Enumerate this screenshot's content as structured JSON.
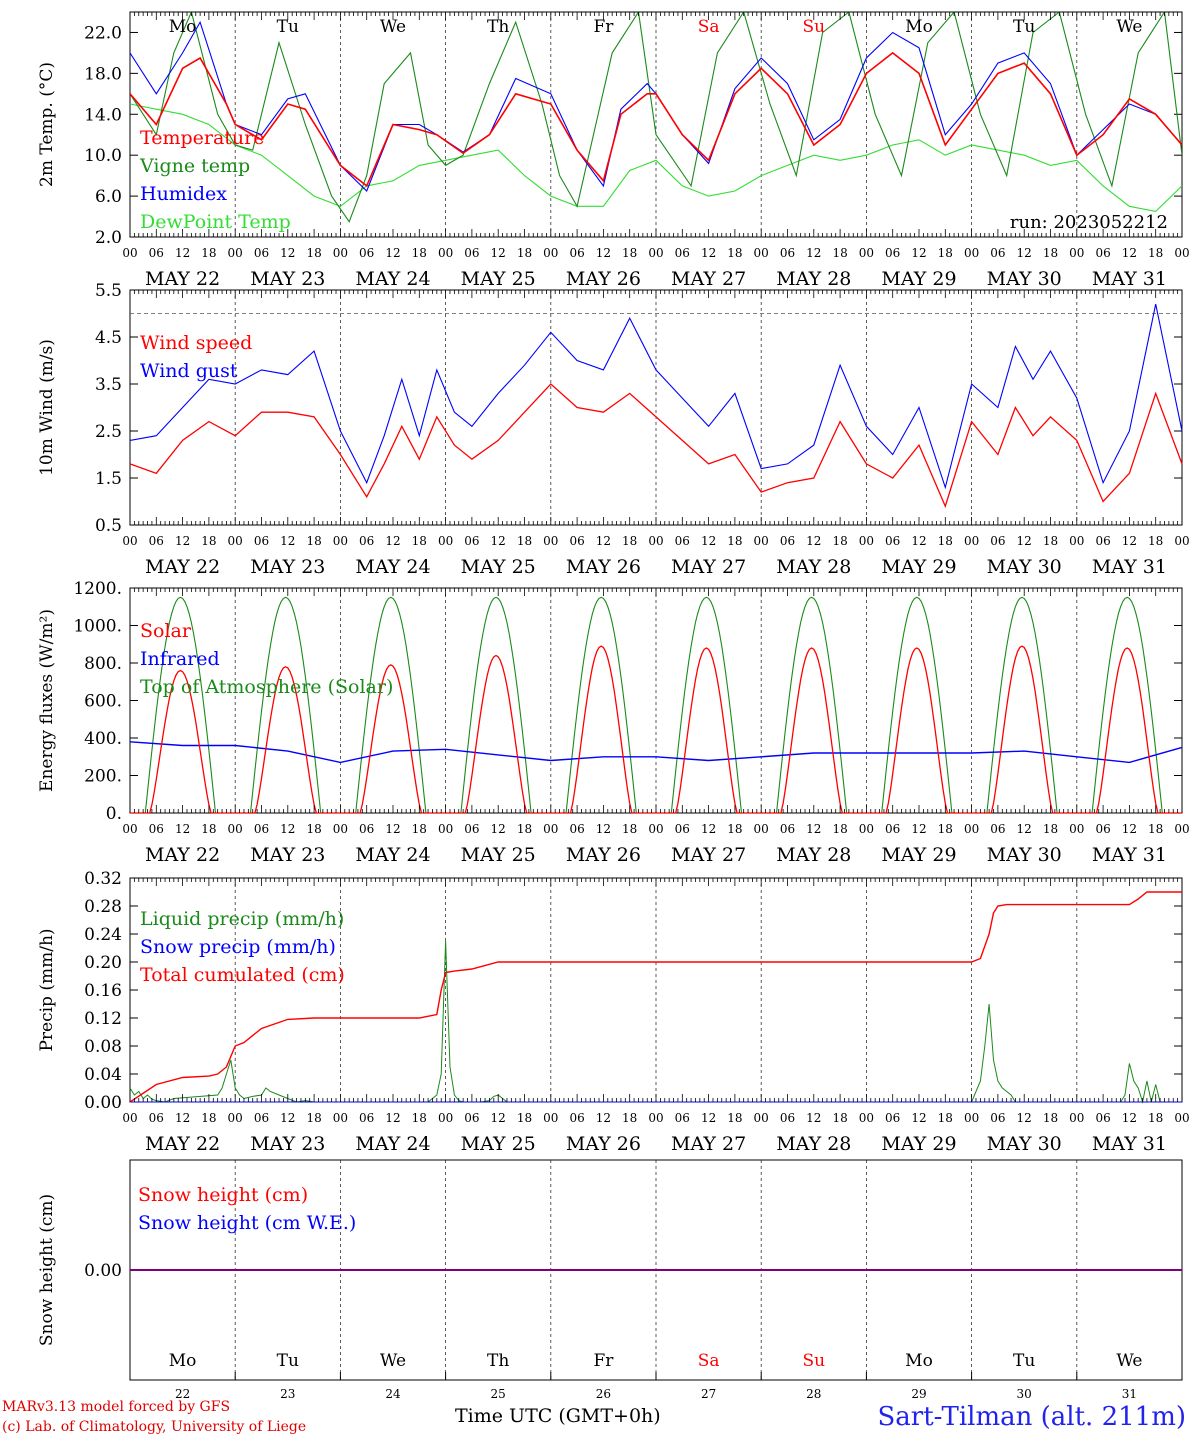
{
  "colors": {
    "red": "#ff0000",
    "green": "#1a8a1a",
    "blue": "#0000ff",
    "lightgreen": "#33dd33",
    "purple": "#7f007f",
    "weekend": "#ff0000",
    "footer_blue": "#2222ee"
  },
  "footer": {
    "model_line": "MARv3.13 model forced by GFS",
    "copyright_line": "(c) Lab. of Climatology, University of Liege",
    "time_label": "Time UTC (GMT+0h)",
    "station": "Sart-Tilman (alt. 211m)"
  },
  "chart_data": [
    {
      "type": "line",
      "ylabel": "2m Temp. (°C)",
      "ylim": [
        2,
        24
      ],
      "yticks": [
        "2.0",
        "6.0",
        "10.0",
        "14.0",
        "18.0",
        "22.0"
      ],
      "run_label": "run: 2023052212",
      "days": [
        "Mo",
        "Tu",
        "We",
        "Th",
        "Fr",
        "Sa",
        "Su",
        "Mo",
        "Tu",
        "We"
      ],
      "dates": [
        "MAY 22",
        "MAY 23",
        "MAY 24",
        "MAY 25",
        "MAY 26",
        "MAY 27",
        "MAY 28",
        "MAY 29",
        "MAY 30",
        "MAY 31"
      ],
      "hour_ticks": [
        "00",
        "06",
        "12",
        "18"
      ],
      "x_unit": "hours since MAY 22 00 UTC",
      "series": [
        {
          "name": "Temperature",
          "color": "#ff0000",
          "x": [
            0,
            6,
            12,
            16,
            22,
            24,
            30,
            36,
            40,
            48,
            54,
            60,
            66,
            70,
            76,
            82,
            88,
            96,
            102,
            108,
            112,
            118,
            120,
            126,
            132,
            138,
            144,
            150,
            156,
            162,
            168,
            174,
            180,
            186,
            192,
            198,
            204,
            210,
            216,
            222,
            228,
            234,
            240
          ],
          "y": [
            16,
            13,
            18.5,
            19.5,
            15,
            13,
            11.5,
            15,
            14.5,
            9,
            7,
            13,
            12.5,
            12,
            10.2,
            12,
            16,
            15,
            10.5,
            7.5,
            14,
            16,
            16,
            12,
            9.5,
            16,
            18.5,
            16,
            11,
            13,
            18,
            20,
            18,
            11,
            14.5,
            18,
            19,
            16,
            10,
            12,
            15.5,
            14,
            11
          ]
        },
        {
          "name": "Vigne temp",
          "color": "#1a8a1a",
          "x": [
            0,
            6,
            10,
            14,
            20,
            24,
            28,
            34,
            40,
            46,
            50,
            54,
            58,
            64,
            68,
            72,
            76,
            82,
            88,
            94,
            98,
            102,
            110,
            116,
            120,
            128,
            134,
            140,
            146,
            152,
            158,
            164,
            170,
            176,
            182,
            188,
            194,
            200,
            206,
            212,
            218,
            224,
            230,
            236,
            240
          ],
          "y": [
            16,
            12,
            20,
            24,
            14,
            11,
            10.5,
            21,
            13,
            6,
            3.5,
            8,
            17,
            20,
            11,
            9,
            10,
            17,
            23,
            15,
            8,
            5,
            20,
            24,
            12,
            7,
            20,
            24,
            15,
            8,
            22,
            24,
            14,
            8,
            21,
            24,
            14,
            8,
            22,
            24,
            14,
            7,
            20,
            24,
            10
          ]
        },
        {
          "name": "Humidex",
          "color": "#0000ff",
          "x": [
            0,
            6,
            12,
            16,
            22,
            24,
            30,
            36,
            40,
            48,
            54,
            60,
            66,
            70,
            76,
            82,
            88,
            96,
            102,
            108,
            112,
            118,
            120,
            126,
            132,
            138,
            144,
            150,
            156,
            162,
            168,
            174,
            180,
            186,
            192,
            198,
            204,
            210,
            216,
            222,
            228,
            234,
            240
          ],
          "y": [
            20,
            16,
            20,
            23,
            15,
            13,
            12,
            15.5,
            16,
            9,
            6.5,
            13,
            13,
            12,
            10.3,
            12,
            17.5,
            16,
            10.5,
            7,
            14.5,
            17,
            16,
            12,
            9.2,
            16.5,
            19.5,
            17,
            11.5,
            13.5,
            19.5,
            22,
            20.5,
            12,
            15,
            19,
            20,
            17,
            10,
            12.5,
            15,
            14,
            11
          ]
        },
        {
          "name": "DewPoint Temp",
          "color": "#33dd33",
          "x": [
            0,
            6,
            12,
            18,
            24,
            30,
            36,
            42,
            48,
            54,
            60,
            66,
            72,
            78,
            84,
            90,
            96,
            102,
            108,
            114,
            120,
            126,
            132,
            138,
            144,
            150,
            156,
            162,
            168,
            174,
            180,
            186,
            192,
            198,
            204,
            210,
            216,
            222,
            228,
            234,
            240
          ],
          "y": [
            15,
            14.5,
            14,
            13,
            11,
            10,
            8,
            6,
            5,
            7,
            7.5,
            9,
            9.5,
            10,
            10.5,
            8,
            6,
            5,
            5,
            8.5,
            9.5,
            7,
            6,
            6.5,
            8,
            9,
            10,
            9.5,
            10,
            11,
            11.5,
            10,
            11,
            10.5,
            10,
            9,
            9.5,
            7,
            5,
            4.5,
            7
          ]
        }
      ]
    },
    {
      "type": "line",
      "ylabel": "10m Wind (m/s)",
      "ylim": [
        0.5,
        5.5
      ],
      "yticks": [
        "0.5",
        "1.5",
        "2.5",
        "3.5",
        "4.5",
        "5.5"
      ],
      "dashed_ref": 5,
      "dates": [
        "MAY 22",
        "MAY 23",
        "MAY 24",
        "MAY 25",
        "MAY 26",
        "MAY 27",
        "MAY 28",
        "MAY 29",
        "MAY 30",
        "MAY 31"
      ],
      "hour_ticks": [
        "00",
        "06",
        "12",
        "18"
      ],
      "series": [
        {
          "name": "Wind speed",
          "color": "#ff0000",
          "x": [
            0,
            6,
            12,
            18,
            24,
            30,
            36,
            42,
            48,
            54,
            58,
            62,
            66,
            70,
            74,
            78,
            84,
            90,
            96,
            102,
            108,
            114,
            120,
            126,
            132,
            138,
            144,
            150,
            156,
            162,
            168,
            174,
            180,
            186,
            192,
            198,
            202,
            206,
            210,
            216,
            222,
            228,
            234,
            240
          ],
          "y": [
            1.8,
            1.6,
            2.3,
            2.7,
            2.4,
            2.9,
            2.9,
            2.8,
            2,
            1.1,
            1.8,
            2.6,
            1.9,
            2.8,
            2.2,
            1.9,
            2.3,
            2.9,
            3.5,
            3,
            2.9,
            3.3,
            2.8,
            2.3,
            1.8,
            2,
            1.2,
            1.4,
            1.5,
            2.7,
            1.8,
            1.5,
            2.2,
            0.9,
            2.7,
            2,
            3,
            2.4,
            2.8,
            2.3,
            1,
            1.6,
            3.3,
            1.8
          ]
        },
        {
          "name": "Wind gust",
          "color": "#0000ff",
          "x": [
            0,
            6,
            12,
            18,
            24,
            30,
            36,
            42,
            48,
            54,
            58,
            62,
            66,
            70,
            74,
            78,
            84,
            90,
            96,
            102,
            108,
            114,
            120,
            126,
            132,
            138,
            144,
            150,
            156,
            162,
            168,
            174,
            180,
            186,
            192,
            198,
            202,
            206,
            210,
            216,
            222,
            228,
            234,
            240
          ],
          "y": [
            2.3,
            2.4,
            3,
            3.6,
            3.5,
            3.8,
            3.7,
            4.2,
            2.5,
            1.4,
            2.4,
            3.6,
            2.4,
            3.8,
            2.9,
            2.6,
            3.3,
            3.9,
            4.6,
            4,
            3.8,
            4.9,
            3.8,
            3.2,
            2.6,
            3.3,
            1.7,
            1.8,
            2.2,
            3.9,
            2.6,
            2,
            3,
            1.3,
            3.5,
            3,
            4.3,
            3.6,
            4.2,
            3.2,
            1.4,
            2.5,
            5.2,
            2.5
          ]
        }
      ]
    },
    {
      "type": "line",
      "ylabel": "Energy fluxes (W/m²)",
      "ylim": [
        0,
        1200
      ],
      "yticks": [
        "0.",
        "200.",
        "400.",
        "600.",
        "800.",
        "1000.",
        "1200."
      ],
      "dates": [
        "MAY 22",
        "MAY 23",
        "MAY 24",
        "MAY 25",
        "MAY 26",
        "MAY 27",
        "MAY 28",
        "MAY 29",
        "MAY 30",
        "MAY 31"
      ],
      "hour_ticks": [
        "00",
        "06",
        "12",
        "18"
      ],
      "solar_daily_peaks": [
        760,
        780,
        790,
        840,
        890,
        880,
        880,
        880,
        890,
        880
      ],
      "toa_daily_peak": 1150,
      "series": [
        {
          "name": "Solar",
          "color": "#ff0000"
        },
        {
          "name": "Infrared",
          "color": "#0000ff",
          "x": [
            0,
            12,
            24,
            36,
            48,
            60,
            72,
            84,
            96,
            108,
            120,
            132,
            144,
            156,
            168,
            180,
            192,
            204,
            216,
            228,
            240
          ],
          "y": [
            380,
            360,
            360,
            330,
            270,
            330,
            340,
            310,
            280,
            300,
            300,
            280,
            300,
            320,
            320,
            320,
            320,
            330,
            300,
            270,
            350
          ]
        },
        {
          "name": "Top of Atmosphere (Solar)",
          "color": "#1a8a1a"
        }
      ]
    },
    {
      "type": "line",
      "ylabel": "Precip (mm/h)",
      "ylim": [
        0,
        0.32
      ],
      "yticks": [
        "0.00",
        "0.04",
        "0.08",
        "0.12",
        "0.16",
        "0.20",
        "0.24",
        "0.28",
        "0.32"
      ],
      "dates": [
        "MAY 22",
        "MAY 23",
        "MAY 24",
        "MAY 25",
        "MAY 26",
        "MAY 27",
        "MAY 28",
        "MAY 29",
        "MAY 30",
        "MAY 31"
      ],
      "hour_ticks": [
        "00",
        "06",
        "12",
        "18"
      ],
      "series": [
        {
          "name": "Liquid precip (mm/h)",
          "color": "#1a8a1a",
          "x": [
            0,
            1,
            2,
            3,
            4,
            5,
            6,
            8,
            10,
            20,
            21,
            22,
            23,
            24,
            25,
            26,
            28,
            30,
            31,
            32,
            34,
            36,
            38,
            40,
            42,
            44,
            46,
            48,
            50,
            52,
            54,
            56,
            58,
            60,
            62,
            64,
            66,
            68,
            70,
            71,
            72,
            73,
            74,
            75,
            76,
            78,
            80,
            82,
            83,
            84,
            85,
            86,
            88,
            90,
            92,
            94,
            96,
            100,
            120,
            140,
            160,
            180,
            192,
            194,
            195,
            196,
            197,
            198,
            199,
            200,
            201,
            202,
            204,
            206,
            208,
            210,
            212,
            214,
            216,
            218,
            220,
            222,
            224,
            226,
            227,
            228,
            229,
            230,
            231,
            232,
            233,
            234,
            235,
            236,
            238,
            240
          ],
          "y": [
            0.02,
            0.01,
            0.015,
            0.005,
            0.01,
            0.004,
            0.002,
            0,
            0.005,
            0.01,
            0.02,
            0.04,
            0.06,
            0.02,
            0.01,
            0.005,
            0.008,
            0.01,
            0.02,
            0.015,
            0.01,
            0.005,
            0,
            0.002,
            0,
            0,
            0,
            0,
            0,
            0,
            0,
            0,
            0,
            0,
            0,
            0,
            0,
            0,
            0.01,
            0.04,
            0.23,
            0.05,
            0.01,
            0.002,
            0,
            0,
            0,
            0.002,
            0.008,
            0.01,
            0.005,
            0,
            0,
            0,
            0,
            0,
            0,
            0,
            0,
            0,
            0,
            0,
            0,
            0.03,
            0.08,
            0.14,
            0.06,
            0.03,
            0.02,
            0.015,
            0.01,
            0,
            0,
            0,
            0,
            0,
            0,
            0,
            0,
            0,
            0,
            0,
            0,
            0,
            0.01,
            0.055,
            0.03,
            0.02,
            0,
            0.03,
            0,
            0.025,
            0,
            0,
            0,
            0
          ]
        },
        {
          "name": "Snow precip (mm/h)",
          "color": "#0000ff",
          "x": [
            0,
            240
          ],
          "y": [
            0,
            0
          ]
        },
        {
          "name": "Total cumulated (cm)",
          "color": "#ff0000",
          "x": [
            0,
            6,
            12,
            18,
            20,
            22,
            23,
            24,
            26,
            30,
            36,
            42,
            48,
            60,
            66,
            70,
            71,
            72,
            74,
            78,
            84,
            96,
            120,
            144,
            168,
            192,
            194,
            196,
            197,
            198,
            200,
            204,
            216,
            228,
            230,
            232,
            240
          ],
          "y": [
            0,
            0.025,
            0.035,
            0.037,
            0.04,
            0.05,
            0.065,
            0.08,
            0.085,
            0.105,
            0.118,
            0.12,
            0.12,
            0.12,
            0.12,
            0.125,
            0.16,
            0.185,
            0.187,
            0.19,
            0.2,
            0.2,
            0.2,
            0.2,
            0.2,
            0.2,
            0.205,
            0.24,
            0.27,
            0.28,
            0.282,
            0.282,
            0.282,
            0.282,
            0.29,
            0.3,
            0.3
          ]
        }
      ]
    },
    {
      "type": "line",
      "ylabel": "Snow height (cm)",
      "yticks": [
        "0.00"
      ],
      "days": [
        "Mo",
        "Tu",
        "We",
        "Th",
        "Fr",
        "Sa",
        "Su",
        "Mo",
        "Tu",
        "We"
      ],
      "day_numbers": [
        "22",
        "23",
        "24",
        "25",
        "26",
        "27",
        "28",
        "29",
        "30",
        "31"
      ],
      "series": [
        {
          "name": "Snow height (cm)",
          "color": "#ff0000",
          "x": [
            0,
            240
          ],
          "y": [
            0,
            0
          ]
        },
        {
          "name": "Snow height (cm W.E.)",
          "color": "#0000ff",
          "x": [
            0,
            240
          ],
          "y": [
            0,
            0
          ]
        }
      ]
    }
  ]
}
